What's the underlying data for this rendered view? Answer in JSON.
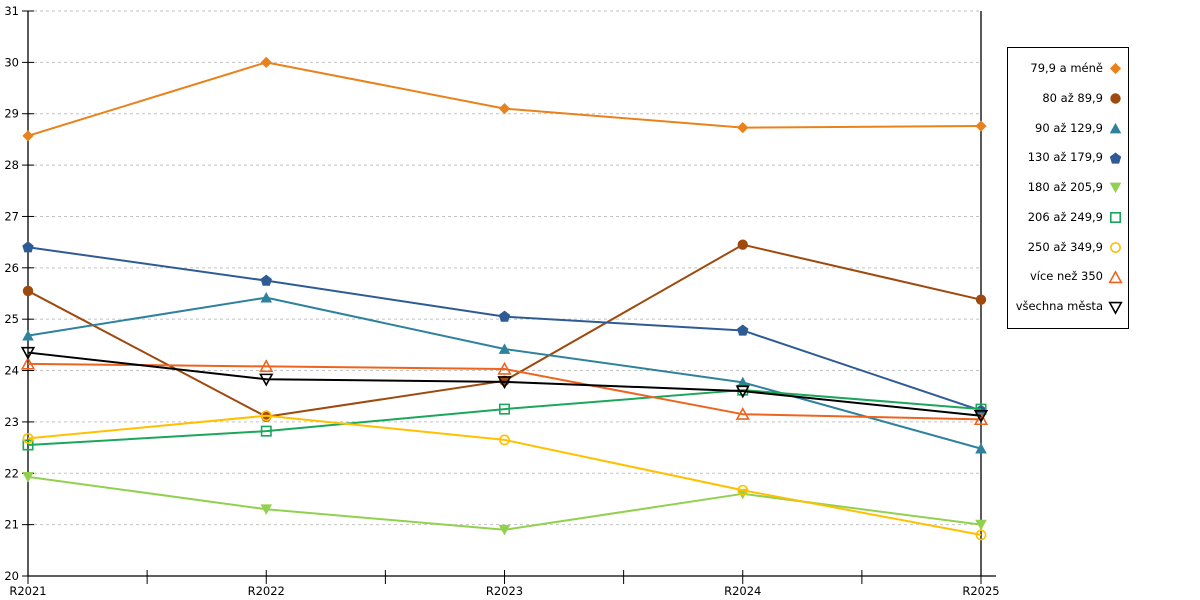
{
  "chart_data": {
    "type": "line",
    "categories": [
      "R2021",
      "R2022",
      "R2023",
      "R2024",
      "R2025"
    ],
    "series": [
      {
        "name": "79,9 a méně",
        "color": "#E8821C",
        "marker": "diamond",
        "fill": "solid",
        "values": [
          28.57,
          30.0,
          29.1,
          28.73,
          28.76
        ]
      },
      {
        "name": "80 až 89,9",
        "color": "#9E4A0F",
        "marker": "circle",
        "fill": "solid",
        "values": [
          25.55,
          23.1,
          23.8,
          26.45,
          25.38
        ]
      },
      {
        "name": "90 až 129,9",
        "color": "#2E829C",
        "marker": "triangle-up",
        "fill": "solid",
        "values": [
          24.68,
          25.42,
          24.42,
          23.77,
          22.48
        ]
      },
      {
        "name": "130 až 179,9",
        "color": "#2F5B94",
        "marker": "pentagon",
        "fill": "solid",
        "values": [
          26.4,
          25.75,
          25.05,
          24.78,
          23.22
        ]
      },
      {
        "name": "180 až 205,9",
        "color": "#92D050",
        "marker": "triangle-down",
        "fill": "solid",
        "values": [
          21.93,
          21.3,
          20.9,
          21.6,
          21.0
        ]
      },
      {
        "name": "206 až 249,9",
        "color": "#1CA65B",
        "marker": "square",
        "fill": "open",
        "values": [
          22.55,
          22.82,
          23.25,
          23.62,
          23.25
        ]
      },
      {
        "name": "250 až 349,9",
        "color": "#FFC000",
        "marker": "circle",
        "fill": "open",
        "values": [
          22.68,
          23.12,
          22.65,
          21.67,
          20.8
        ]
      },
      {
        "name": "více než 350",
        "color": "#ED6420",
        "marker": "triangle-up",
        "fill": "open",
        "values": [
          24.13,
          24.08,
          24.03,
          23.15,
          23.05
        ]
      },
      {
        "name": "všechna města",
        "color": "#000000",
        "marker": "triangle-down",
        "fill": "open",
        "values": [
          24.35,
          23.83,
          23.78,
          23.6,
          23.12
        ]
      }
    ],
    "ylim": [
      20,
      31
    ],
    "yticks": [
      31,
      30,
      29,
      28,
      27,
      26,
      25,
      24,
      23,
      22,
      21,
      20
    ],
    "grid": "horizontal-dashed",
    "legend_position": "right"
  },
  "colors": {
    "background": "#FFFFFF",
    "grid": "#C2C2C2",
    "axis": "#000000",
    "tick_label": "#000000"
  }
}
